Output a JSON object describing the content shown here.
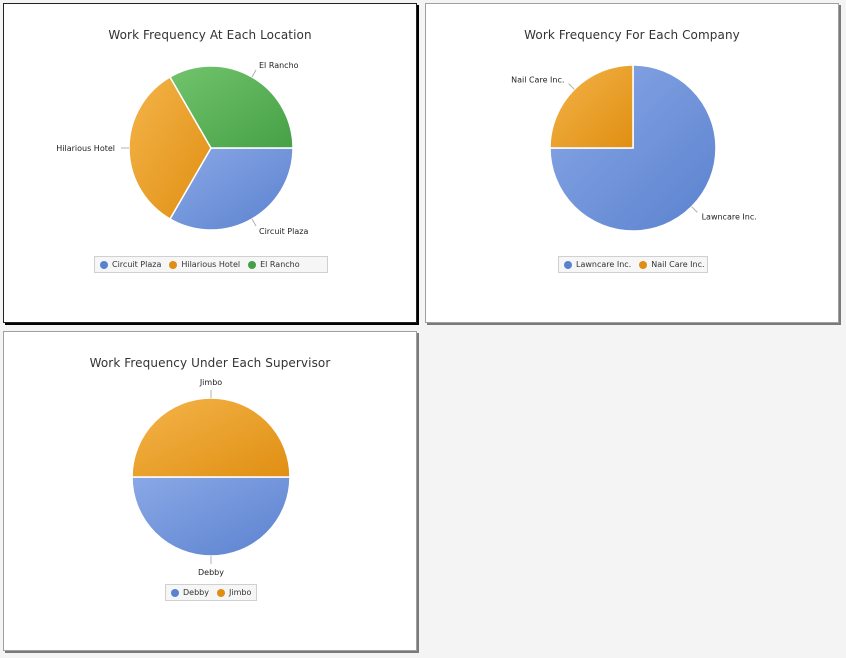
{
  "colors": {
    "blue_light": "#8aa8e6",
    "blue_dark": "#5b82cf",
    "orange_light": "#f4b44a",
    "orange_dark": "#e08f12",
    "green_light": "#72c46c",
    "green_dark": "#46a046",
    "connector": "#b0b0b0"
  },
  "chart_data": [
    {
      "type": "pie",
      "title": "Work Frequency At Each Location",
      "categories": [
        "Circuit Plaza",
        "Hilarious Hotel",
        "El Rancho"
      ],
      "values": [
        1,
        1,
        1
      ],
      "colors": [
        "blue",
        "orange",
        "green"
      ],
      "legend_position": "bottom"
    },
    {
      "type": "pie",
      "title": "Work Frequency For Each Company",
      "categories": [
        "Lawncare Inc.",
        "Nail Care Inc."
      ],
      "values": [
        3,
        1
      ],
      "colors": [
        "blue",
        "orange"
      ],
      "legend_position": "bottom"
    },
    {
      "type": "pie",
      "title": "Work Frequency Under Each Supervisor",
      "categories": [
        "Debby",
        "Jimbo"
      ],
      "values": [
        1,
        1
      ],
      "colors": [
        "blue",
        "orange"
      ],
      "legend_position": "bottom"
    }
  ]
}
